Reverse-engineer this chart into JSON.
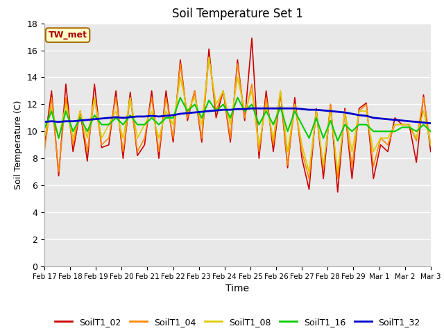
{
  "title": "Soil Temperature Set 1",
  "xlabel": "Time",
  "ylabel": "Soil Temperature (C)",
  "ylim": [
    0,
    18
  ],
  "yticks": [
    0,
    2,
    4,
    6,
    8,
    10,
    12,
    14,
    16,
    18
  ],
  "annotation": "TW_met",
  "background_color": "#ffffff",
  "plot_bg_color": "#e8e8e8",
  "series_colors": {
    "SoilT1_02": "#cc0000",
    "SoilT1_04": "#ff8800",
    "SoilT1_08": "#ddcc00",
    "SoilT1_16": "#00cc00",
    "SoilT1_32": "#0000cc"
  },
  "x_labels": [
    "Feb 17",
    "Feb 18",
    "Feb 19",
    "Feb 20",
    "Feb 21",
    "Feb 22",
    "Feb 23",
    "Feb 24",
    "Feb 25",
    "Feb 26",
    "Feb 27",
    "Feb 28",
    "Feb 29",
    "Mar 1",
    "Mar 2",
    "Mar 3"
  ],
  "SoilT1_02": [
    9.0,
    13.0,
    6.7,
    13.5,
    8.5,
    11.5,
    7.8,
    13.5,
    8.8,
    9.0,
    13.0,
    8.0,
    12.9,
    8.2,
    9.0,
    13.0,
    8.0,
    13.0,
    9.2,
    15.3,
    10.8,
    13.0,
    9.2,
    16.1,
    11.0,
    13.0,
    9.2,
    15.3,
    10.8,
    16.9,
    8.0,
    13.0,
    8.5,
    12.9,
    7.3,
    12.5,
    8.0,
    5.7,
    11.7,
    6.5,
    12.0,
    5.5,
    11.7,
    6.5,
    11.7,
    12.1,
    6.5,
    9.0,
    8.5,
    11.0,
    10.5,
    10.5,
    7.7,
    12.7,
    8.5
  ],
  "SoilT1_04": [
    8.5,
    12.5,
    7.0,
    12.5,
    9.0,
    11.5,
    8.5,
    12.5,
    9.0,
    9.5,
    12.5,
    8.5,
    12.5,
    8.5,
    9.5,
    12.5,
    8.5,
    12.5,
    9.5,
    15.0,
    11.0,
    13.0,
    9.5,
    15.5,
    11.5,
    13.0,
    9.5,
    15.0,
    11.0,
    13.5,
    8.5,
    12.5,
    9.0,
    13.0,
    7.5,
    12.0,
    8.5,
    6.5,
    11.5,
    7.2,
    12.0,
    6.5,
    11.5,
    7.4,
    11.5,
    12.0,
    7.4,
    9.5,
    9.0,
    10.5,
    10.5,
    10.5,
    9.3,
    12.5,
    9.0
  ],
  "SoilT1_08": [
    9.5,
    11.8,
    9.5,
    12.0,
    9.5,
    11.5,
    9.5,
    12.5,
    9.5,
    10.5,
    11.5,
    9.5,
    12.5,
    9.5,
    10.5,
    11.5,
    9.5,
    11.5,
    10.5,
    14.0,
    11.5,
    12.5,
    10.5,
    15.5,
    12.0,
    13.0,
    10.5,
    14.0,
    11.5,
    13.0,
    9.0,
    12.0,
    9.5,
    13.0,
    8.5,
    12.0,
    9.0,
    7.0,
    11.5,
    7.5,
    11.5,
    7.0,
    11.5,
    8.5,
    11.5,
    11.5,
    8.5,
    9.5,
    9.5,
    10.5,
    10.5,
    10.5,
    9.5,
    11.5,
    9.0
  ],
  "SoilT1_16": [
    10.2,
    11.5,
    9.5,
    11.5,
    10.0,
    11.0,
    10.0,
    11.2,
    10.5,
    10.5,
    11.0,
    10.5,
    11.2,
    10.5,
    10.5,
    11.0,
    10.5,
    11.0,
    11.0,
    12.5,
    11.5,
    12.0,
    11.0,
    12.3,
    11.5,
    12.0,
    11.0,
    12.5,
    11.5,
    12.0,
    10.5,
    11.5,
    10.5,
    11.8,
    10.0,
    11.5,
    10.5,
    9.5,
    11.0,
    9.5,
    10.8,
    9.3,
    10.5,
    10.0,
    10.5,
    10.5,
    10.0,
    10.0,
    10.0,
    10.0,
    10.3,
    10.3,
    10.0,
    10.5,
    10.0
  ],
  "SoilT1_32": [
    10.7,
    10.75,
    10.7,
    10.75,
    10.75,
    10.8,
    10.85,
    10.9,
    10.95,
    11.0,
    11.05,
    11.0,
    11.05,
    11.1,
    11.1,
    11.15,
    11.1,
    11.15,
    11.2,
    11.3,
    11.35,
    11.4,
    11.45,
    11.5,
    11.55,
    11.6,
    11.6,
    11.65,
    11.65,
    11.7,
    11.7,
    11.7,
    11.7,
    11.7,
    11.7,
    11.7,
    11.65,
    11.6,
    11.6,
    11.55,
    11.5,
    11.45,
    11.4,
    11.3,
    11.2,
    11.15,
    11.0,
    10.95,
    10.9,
    10.85,
    10.8,
    10.75,
    10.7,
    10.65,
    10.6
  ]
}
